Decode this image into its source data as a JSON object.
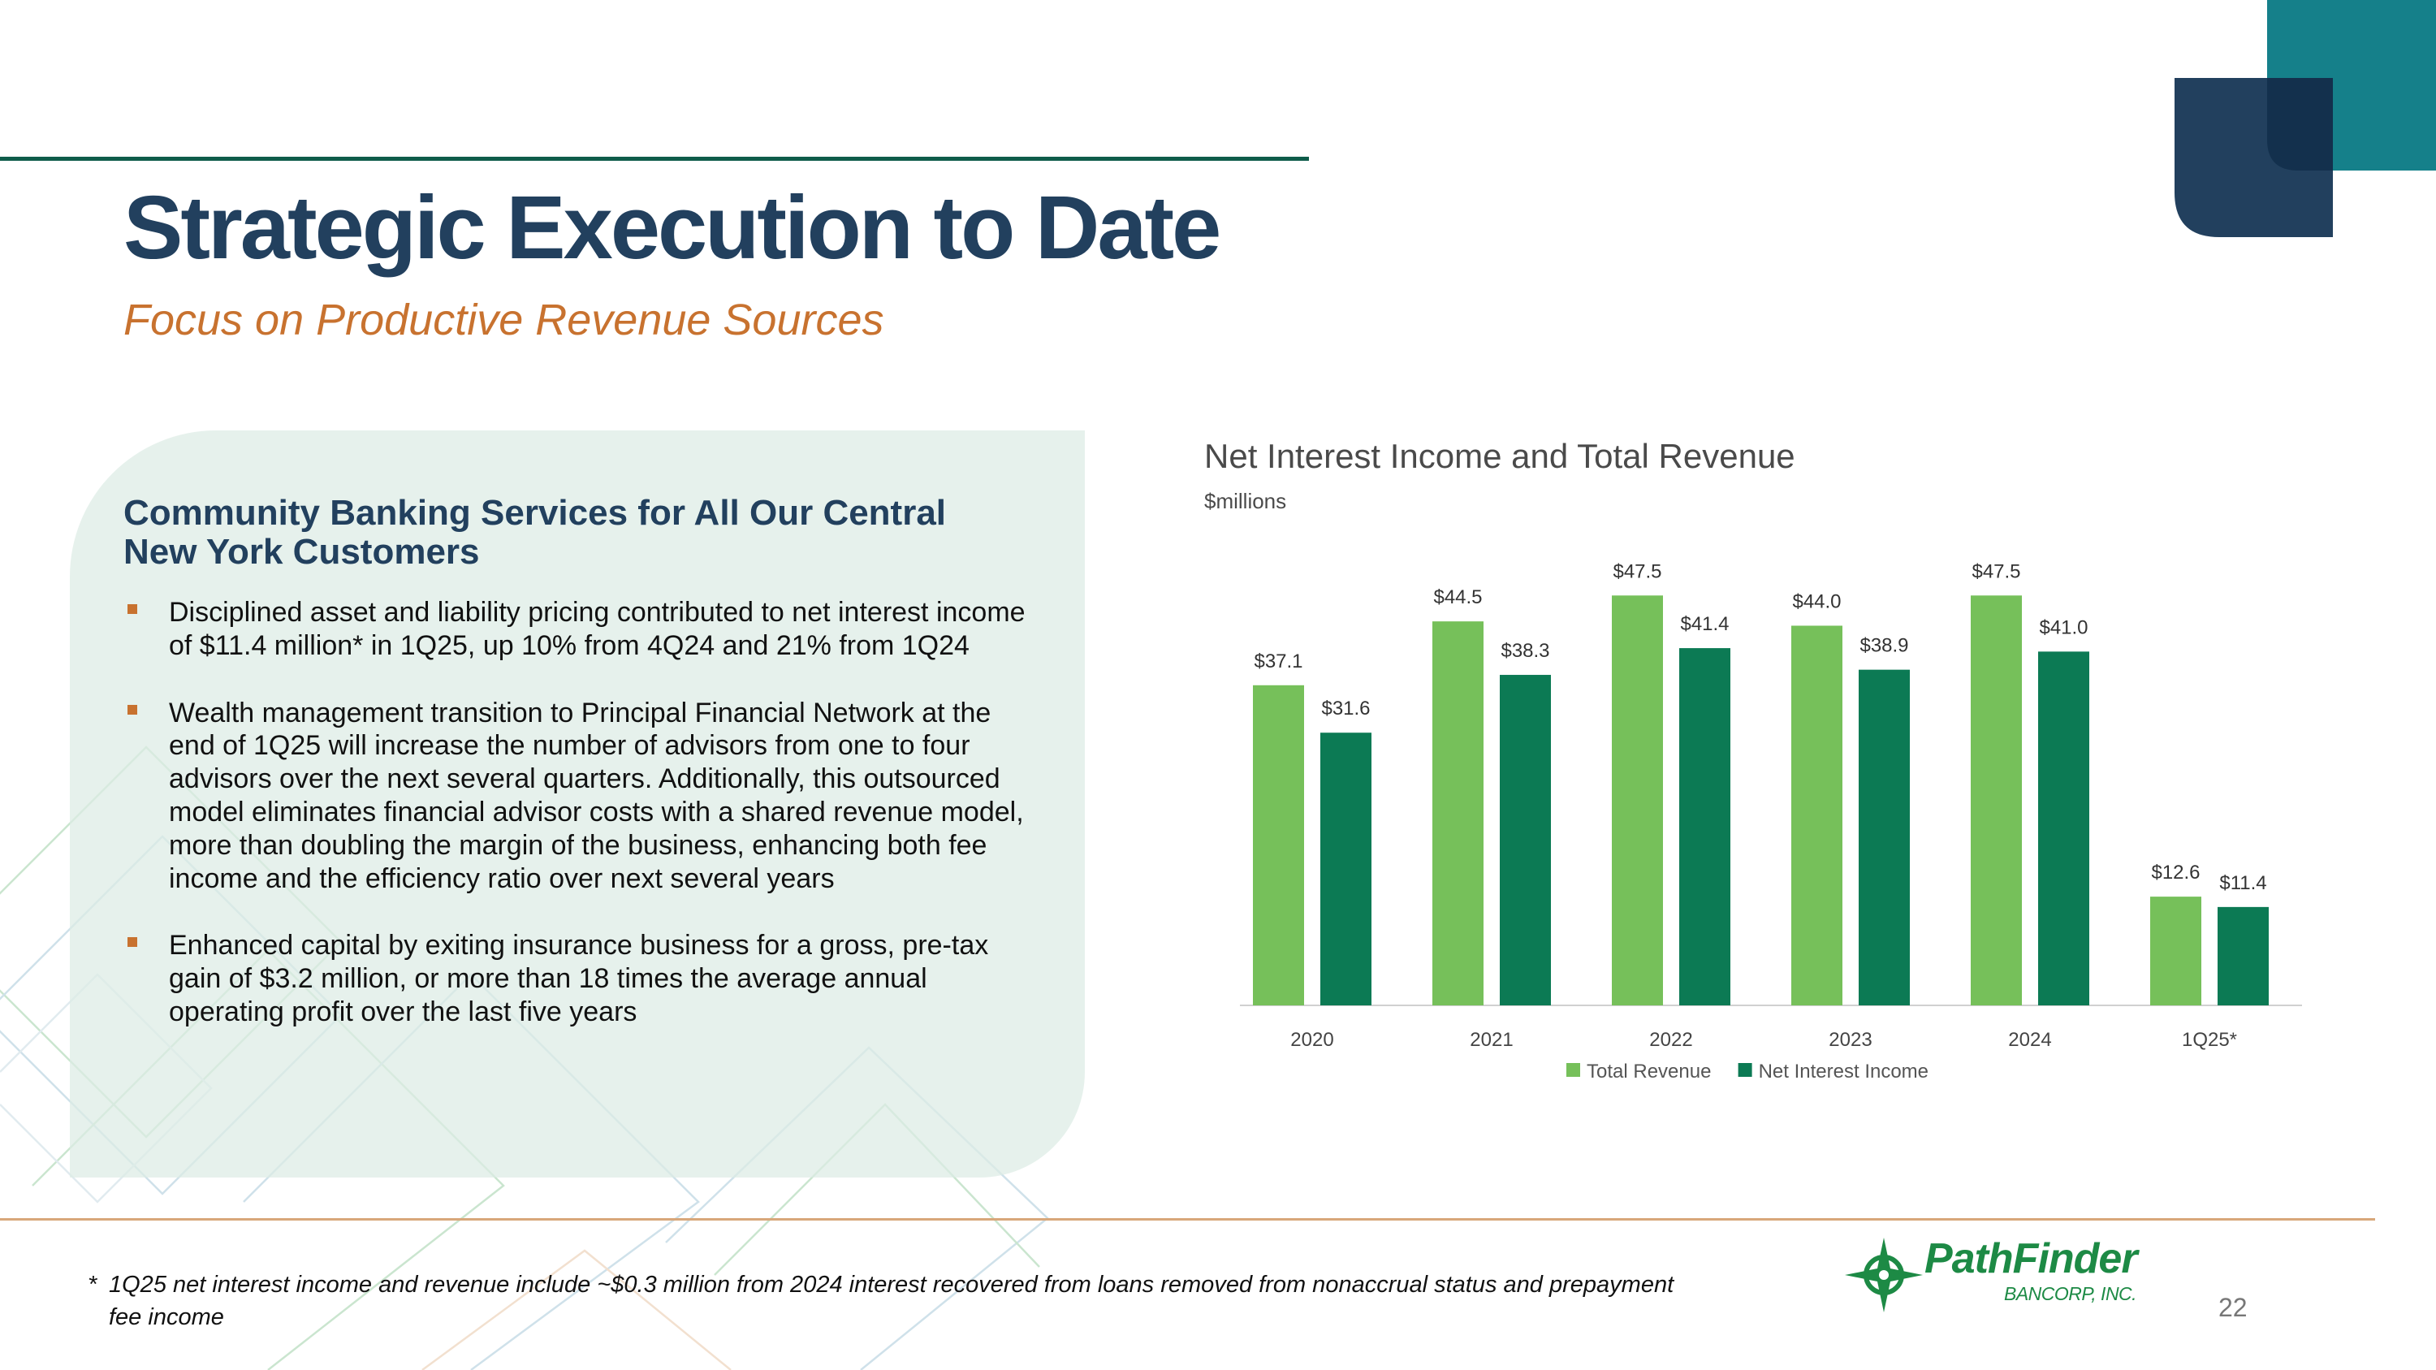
{
  "title": "Strategic Execution to Date",
  "subtitle": "Focus on Productive Revenue Sources",
  "panel": {
    "heading": "Community Banking Services for All Our Central New York Customers",
    "bullets": [
      "Disciplined asset and liability pricing contributed to net interest income of $11.4 million* in 1Q25, up 10% from 4Q24 and 21% from 1Q24",
      "Wealth management transition to Principal Financial Network at the end of 1Q25 will increase the number of advisors from one to four advisors over the next several quarters. Additionally, this outsourced model eliminates financial advisor costs with a shared revenue model, more than doubling the margin of the business, enhancing both fee income and the efficiency ratio over next several years",
      " Enhanced capital by exiting insurance business for a gross, pre-tax gain of $3.2 million, or more than 18 times the average annual operating profit over the last five years"
    ]
  },
  "chart_data": {
    "type": "bar",
    "title": "Net Interest Income and Total Revenue",
    "ylabel": "$millions",
    "xlabel": "",
    "categories": [
      "2020",
      "2021",
      "2022",
      "2023",
      "2024",
      "1Q25*"
    ],
    "series": [
      {
        "name": "Total Revenue",
        "color": "#76c05a",
        "values": [
          37.1,
          44.5,
          47.5,
          44.0,
          47.5,
          12.6
        ],
        "labels": [
          "$37.1",
          "$44.5",
          "$47.5",
          "$44.0",
          "$47.5",
          "$12.6"
        ]
      },
      {
        "name": "Net Interest Income",
        "color": "#0c7a54",
        "values": [
          31.6,
          38.3,
          41.4,
          38.9,
          41.0,
          11.4
        ],
        "labels": [
          "$31.6",
          "$38.3",
          "$41.4",
          "$38.9",
          "$41.0",
          "$11.4"
        ]
      }
    ],
    "ylim": [
      0,
      50
    ],
    "grid": false,
    "legend": "bottom-center"
  },
  "footnote": {
    "marker": "*",
    "text": "1Q25 net interest income and revenue include ~$0.3 million from 2024 interest recovered from loans removed from nonaccrual status and prepayment fee income"
  },
  "logo": {
    "name": "PathFinder",
    "sub": "BANCORP, INC."
  },
  "page_number": "22",
  "colors": {
    "navy": "#22405e",
    "accent_orange": "#c8722f",
    "teal": "#15808a",
    "dark_green": "#0e5c4a"
  }
}
